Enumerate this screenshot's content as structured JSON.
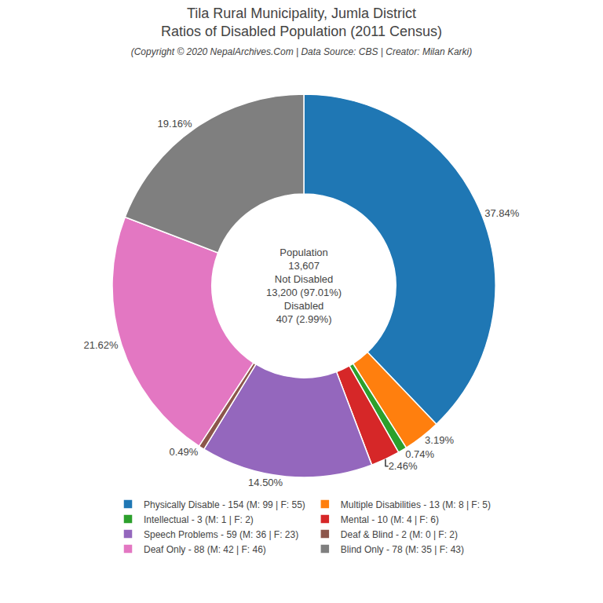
{
  "chart_data": {
    "type": "donut",
    "title": "Tila Rural Municipality, Jumla District\nRatios of Disabled Population (2011 Census)",
    "subtitle": "(Copyright © 2020 NepalArchives.Com | Data Source: CBS | Creator: Milan Karki)",
    "categories": [
      "Physically Disable - 154 (M: 99 | F: 55)",
      "Multiple Disabilities - 13 (M: 8 | F: 5)",
      "Intellectual - 3 (M: 1 | F: 2)",
      "Mental - 10 (M: 4 | F: 6)",
      "Speech Problems - 59 (M: 36 | F: 23)",
      "Deaf & Blind - 2 (M: 0 | F: 2)",
      "Deaf Only - 88 (M: 42 | F: 46)",
      "Blind Only - 78 (M: 35 | F: 43)"
    ],
    "values": [
      37.84,
      3.19,
      0.74,
      2.46,
      14.5,
      0.49,
      21.62,
      19.16
    ],
    "value_labels": [
      "37.84%",
      "3.19%",
      "0.74%",
      "2.46%",
      "14.50%",
      "0.49%",
      "21.62%",
      "19.16%"
    ],
    "data_labels": true,
    "legend": "bottom",
    "annotations": [
      "Population",
      "13,607",
      "Not Disabled",
      "13,200 (97.01%)",
      "Disabled",
      "407 (2.99%)"
    ]
  }
}
